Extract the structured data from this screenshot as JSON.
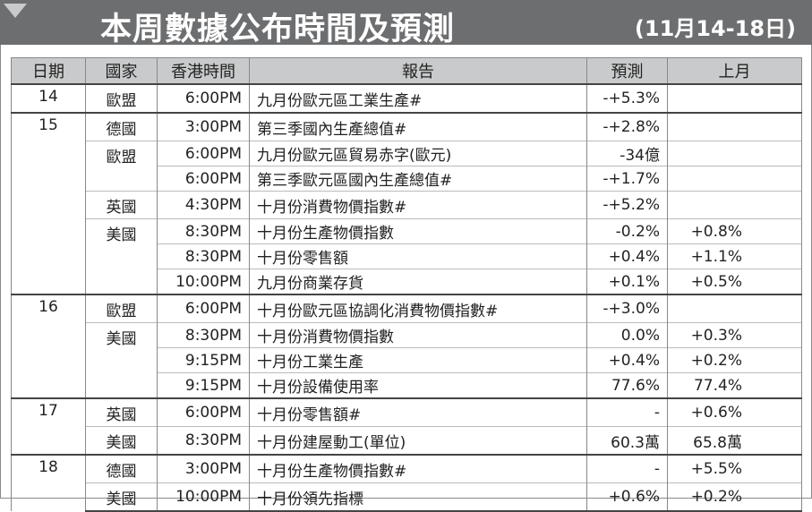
{
  "header": {
    "title": "本周數據公布時間及預測",
    "subtitle": "(11月14-18日)"
  },
  "table": {
    "columns": [
      "日期",
      "國家",
      "香港時間",
      "報告",
      "預測",
      "上月"
    ],
    "groups": [
      {
        "date": "14",
        "countries": [
          {
            "country": "歐盟",
            "rows": [
              {
                "time": "6:00PM",
                "report": "九月份歐元區工業生產#",
                "forecast": "-+5.3%"
              }
            ]
          }
        ]
      },
      {
        "date": "15",
        "countries": [
          {
            "country": "德國",
            "rows": [
              {
                "time": "3:00PM",
                "report": "第三季國內生產總值#",
                "forecast": "-+2.8%"
              }
            ]
          },
          {
            "country": "歐盟",
            "rows": [
              {
                "time": "6:00PM",
                "report": "九月份歐元區貿易赤字(歐元)",
                "forecast": "-34億"
              },
              {
                "time": "6:00PM",
                "report": "第三季歐元區國內生產總值#",
                "forecast": "-+1.7%"
              }
            ]
          },
          {
            "country": "英國",
            "rows": [
              {
                "time": "4:30PM",
                "report": "十月份消費物價指數#",
                "forecast": "-+5.2%"
              }
            ]
          },
          {
            "country": "美國",
            "rows": [
              {
                "time": "8:30PM",
                "report": "十月份生產物價指數",
                "forecast": "-0.2%",
                "previous": "+0.8%"
              },
              {
                "time": "8:30PM",
                "report": "十月份零售額",
                "forecast": "+0.4%",
                "previous": "+1.1%"
              },
              {
                "time": "10:00PM",
                "report": "九月份商業存貨",
                "forecast": "+0.1%",
                "previous": "+0.5%"
              }
            ]
          }
        ]
      },
      {
        "date": "16",
        "countries": [
          {
            "country": "歐盟",
            "rows": [
              {
                "time": "6:00PM",
                "report": "十月份歐元區協調化消費物價指數#",
                "forecast": "-+3.0%"
              }
            ]
          },
          {
            "country": "美國",
            "rows": [
              {
                "time": "8:30PM",
                "report": "十月份消費物價指數",
                "forecast": "0.0%",
                "previous": "+0.3%"
              },
              {
                "time": "9:15PM",
                "report": "十月份工業生產",
                "forecast": "+0.4%",
                "previous": "+0.2%"
              },
              {
                "time": "9:15PM",
                "report": "十月份設備使用率",
                "forecast": "77.6%",
                "previous": "77.4%"
              }
            ]
          }
        ]
      },
      {
        "date": "17",
        "countries": [
          {
            "country": "英國",
            "rows": [
              {
                "time": "6:00PM",
                "report": "十月份零售額#",
                "forecast": "-",
                "previous": "+0.6%"
              }
            ]
          },
          {
            "country": "美國",
            "rows": [
              {
                "time": "8:30PM",
                "report": "十月份建屋動工(單位)",
                "forecast": "60.3萬",
                "previous": "65.8萬"
              }
            ]
          }
        ]
      },
      {
        "date": "18",
        "countries": [
          {
            "country": "德國",
            "rows": [
              {
                "time": "3:00PM",
                "report": "十月份生產物價指數#",
                "forecast": "-",
                "previous": "+5.5%"
              }
            ]
          },
          {
            "country": "美國",
            "rows": [
              {
                "time": "10:00PM",
                "report": "十月份領先指標",
                "forecast": "+0.6%",
                "previous": "+0.2%"
              }
            ]
          }
        ]
      }
    ]
  }
}
